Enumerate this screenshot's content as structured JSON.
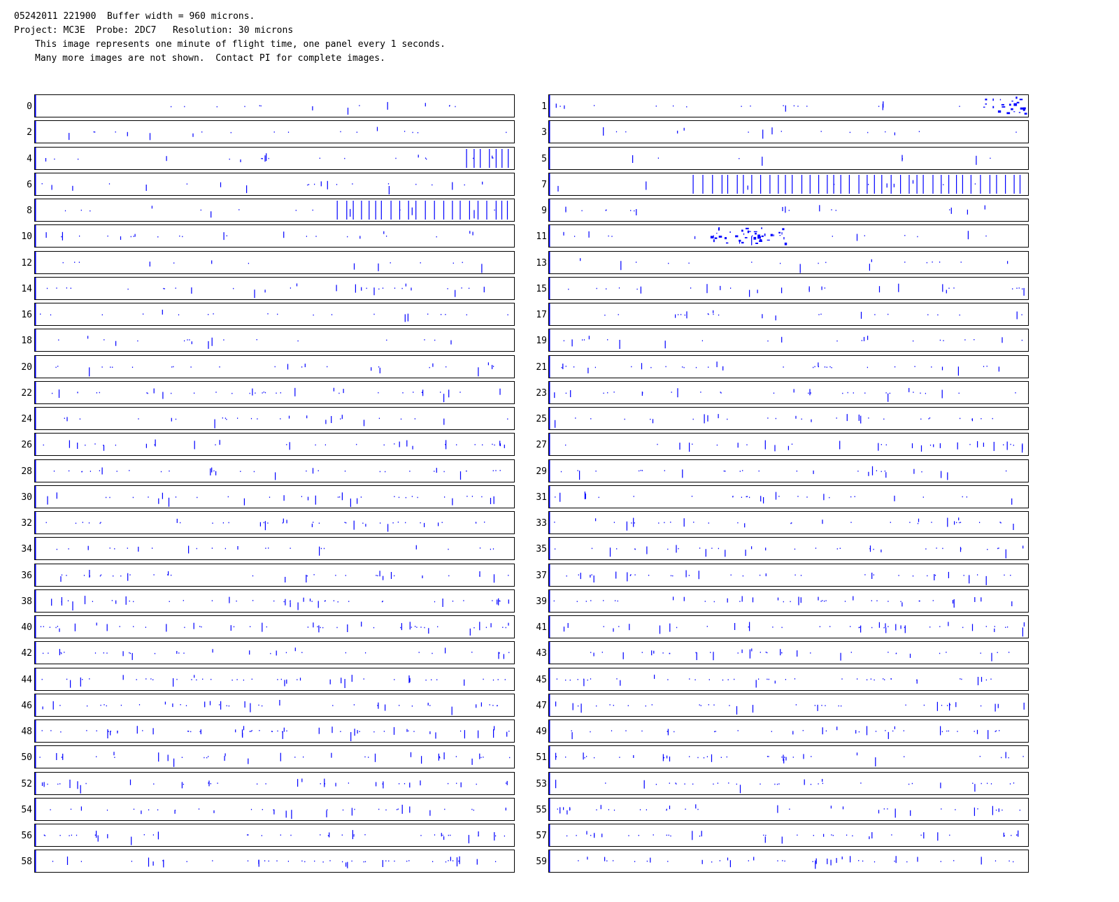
{
  "header": {
    "line1": "05242011 221900  Buffer width = 960 microns.",
    "line2": "Project: MC3E  Probe: 2DC7   Resolution: 30 microns",
    "line3": "This image represents one minute of flight time, one panel every 1 seconds.",
    "line4": "Many more images are not shown.  Contact PI for complete images."
  },
  "colors": {
    "particle": "#0000ff",
    "frame": "#000000",
    "background": "#ffffff"
  },
  "panels": [
    {
      "label": "0",
      "density": 14
    },
    {
      "label": "1",
      "density": 18,
      "blob": true
    },
    {
      "label": "2",
      "density": 18
    },
    {
      "label": "3",
      "density": 16
    },
    {
      "label": "4",
      "density": 20,
      "columns_start": 0.9
    },
    {
      "label": "5",
      "density": 8
    },
    {
      "label": "6",
      "density": 22
    },
    {
      "label": "7",
      "density": 10,
      "columns_start": 0.3
    },
    {
      "label": "8",
      "density": 14,
      "columns_start": 0.63
    },
    {
      "label": "9",
      "density": 18
    },
    {
      "label": "10",
      "density": 24
    },
    {
      "label": "11",
      "density": 16,
      "blob": true
    },
    {
      "label": "12",
      "density": 14
    },
    {
      "label": "13",
      "density": 18
    },
    {
      "label": "14",
      "density": 30
    },
    {
      "label": "15",
      "density": 28
    },
    {
      "label": "16",
      "density": 20
    },
    {
      "label": "17",
      "density": 24
    },
    {
      "label": "18",
      "density": 18
    },
    {
      "label": "19",
      "density": 22
    },
    {
      "label": "20",
      "density": 26
    },
    {
      "label": "21",
      "density": 34
    },
    {
      "label": "22",
      "density": 36
    },
    {
      "label": "23",
      "density": 32
    },
    {
      "label": "24",
      "density": 26
    },
    {
      "label": "25",
      "density": 30
    },
    {
      "label": "26",
      "density": 34
    },
    {
      "label": "27",
      "density": 32
    },
    {
      "label": "28",
      "density": 34
    },
    {
      "label": "29",
      "density": 28
    },
    {
      "label": "30",
      "density": 36
    },
    {
      "label": "31",
      "density": 28
    },
    {
      "label": "32",
      "density": 38
    },
    {
      "label": "33",
      "density": 34
    },
    {
      "label": "34",
      "density": 24
    },
    {
      "label": "35",
      "density": 36
    },
    {
      "label": "36",
      "density": 36
    },
    {
      "label": "37",
      "density": 38
    },
    {
      "label": "38",
      "density": 46
    },
    {
      "label": "39",
      "density": 40
    },
    {
      "label": "40",
      "density": 50
    },
    {
      "label": "41",
      "density": 44
    },
    {
      "label": "42",
      "density": 34
    },
    {
      "label": "43",
      "density": 38
    },
    {
      "label": "44",
      "density": 44
    },
    {
      "label": "45",
      "density": 42
    },
    {
      "label": "46",
      "density": 40
    },
    {
      "label": "47",
      "density": 36
    },
    {
      "label": "48",
      "density": 56
    },
    {
      "label": "49",
      "density": 38
    },
    {
      "label": "50",
      "density": 36
    },
    {
      "label": "51",
      "density": 38
    },
    {
      "label": "52",
      "density": 40
    },
    {
      "label": "53",
      "density": 34
    },
    {
      "label": "54",
      "density": 34
    },
    {
      "label": "55",
      "density": 36
    },
    {
      "label": "56",
      "density": 40
    },
    {
      "label": "57",
      "density": 40
    },
    {
      "label": "58",
      "density": 44
    },
    {
      "label": "59",
      "density": 40
    }
  ]
}
